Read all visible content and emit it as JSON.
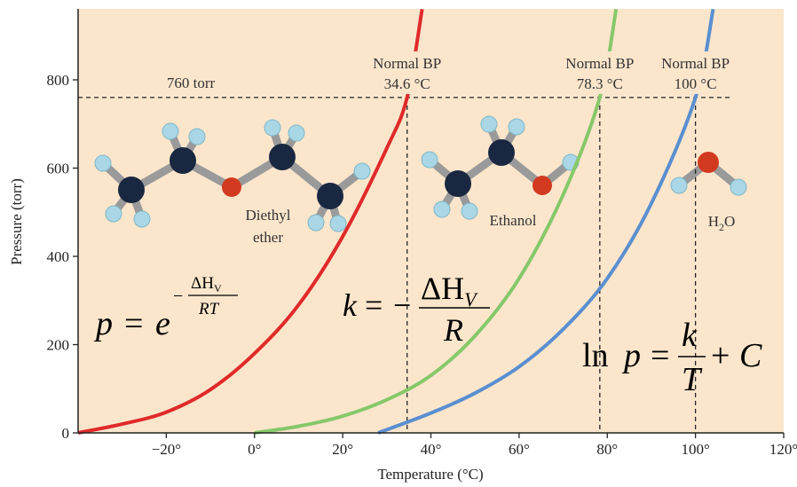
{
  "chart_data": {
    "type": "line",
    "title": "",
    "xlabel": "Temperature (°C)",
    "ylabel": "Pressure (torr)",
    "xlim": [
      -40,
      120
    ],
    "ylim": [
      0,
      960
    ],
    "grid": false,
    "background_color": "#fbe6cc",
    "x_tick_values": [
      -20,
      0,
      20,
      40,
      60,
      80,
      100,
      120
    ],
    "x_tick_labels": [
      "−20°",
      "0°",
      "20°",
      "40°",
      "60°",
      "80°",
      "100°",
      "120°"
    ],
    "y_tick_values": [
      0,
      200,
      400,
      600,
      800
    ],
    "y_tick_labels": [
      "0",
      "200",
      "400",
      "600",
      "800"
    ],
    "reference_line": {
      "y": 760,
      "label": "760 torr"
    },
    "series": [
      {
        "name": "Diethyl ether",
        "color": "#e02a2a",
        "boiling_point": 34.6,
        "x": [
          -40,
          -30,
          -20,
          -10,
          0,
          10,
          20,
          30,
          34.6,
          38
        ],
        "y": [
          0,
          20,
          47,
          98,
          180,
          290,
          445,
          645,
          760,
          960
        ]
      },
      {
        "name": "Ethanol",
        "color": "#86c86a",
        "boiling_point": 78.3,
        "x": [
          0,
          10,
          20,
          30,
          40,
          50,
          60,
          70,
          78.3,
          82
        ],
        "y": [
          0,
          15,
          38,
          75,
          130,
          220,
          350,
          540,
          760,
          960
        ]
      },
      {
        "name": "H2O",
        "color": "#5a8fd0",
        "boiling_point": 100,
        "x": [
          28,
          40,
          50,
          60,
          70,
          80,
          90,
          100,
          104
        ],
        "y": [
          0,
          45,
          90,
          150,
          235,
          350,
          520,
          760,
          960
        ]
      }
    ],
    "annotations": [
      {
        "line1": "Normal BP",
        "line2": "34.6 °C",
        "x": 34.6
      },
      {
        "line1": "Normal BP",
        "line2": "78.3 °C",
        "x": 78.3
      },
      {
        "line1": "Normal BP",
        "line2": "100 °C",
        "x": 100
      }
    ],
    "molecule_labels": [
      {
        "line1": "Diethyl",
        "line2": "ether"
      },
      {
        "text": "Ethanol"
      },
      {
        "main": "H",
        "sub": "2",
        "tail": "O"
      }
    ],
    "equations": {
      "exponential": {
        "lhs": "p",
        "eq": "=",
        "base": "e",
        "sign": "−",
        "num_delta": "ΔH",
        "num_sub": "V",
        "den": "RT"
      },
      "slope": {
        "lhs": "k",
        "eq": "=",
        "sign": "−",
        "num_delta": "ΔH",
        "num_sub": "V",
        "den": "R"
      },
      "linear": {
        "ln": "ln",
        "p": "p",
        "eq": "=",
        "num": "k",
        "den": "T",
        "plus": "+",
        "const": "C"
      }
    }
  }
}
